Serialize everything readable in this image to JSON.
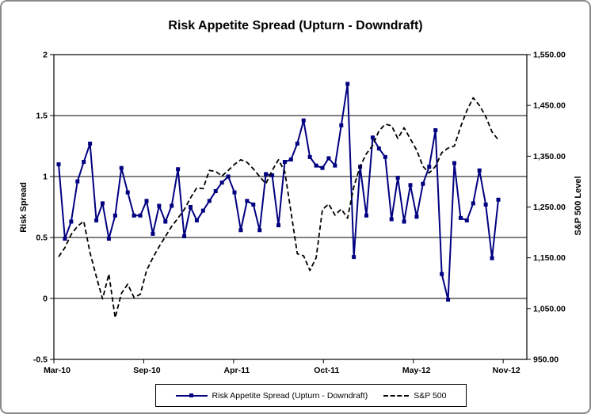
{
  "title": "Risk Appetite Spread (Upturn - Downdraft)",
  "legend": {
    "items": [
      {
        "label": "Risk Appetite Spread (Upturn - Downdraft)",
        "color": "#000080",
        "style": "solid-line-square-marker"
      },
      {
        "label": "S&P 500",
        "color": "#000000",
        "style": "dashed-line"
      }
    ]
  },
  "chart_data": {
    "type": "line",
    "title": "Risk Appetite Spread (Upturn - Downdraft)",
    "grid": "horizontal",
    "legend_position": "bottom",
    "left_axis": {
      "label": "Risk Spread",
      "min": -0.5,
      "max": 2,
      "tick_step": 0.5,
      "tick_labels": [
        "2",
        "1.5",
        "1",
        "0.5",
        "0",
        "-0.5"
      ],
      "tick_values": [
        2,
        1.5,
        1,
        0.5,
        0,
        -0.5
      ]
    },
    "right_axis": {
      "label": "S&P 500 Level",
      "min": 950,
      "max": 1550,
      "tick_step": 100,
      "tick_labels": [
        "1,550.00",
        "1,450.00",
        "1,350.00",
        "1,250.00",
        "1,150.00",
        "1,050.00",
        "950.00"
      ],
      "tick_values": [
        1550,
        1450,
        1350,
        1250,
        1150,
        1050,
        950
      ]
    },
    "x_axis": {
      "tick_labels": [
        "Mar-10",
        "Sep-10",
        "Apr-11",
        "Oct-11",
        "May-12",
        "Nov-12"
      ]
    },
    "series": [
      {
        "name": "Risk Appetite Spread (Upturn - Downdraft)",
        "axis": "left",
        "color": "#000080",
        "line": "solid",
        "marker": "square",
        "values": [
          1.1,
          0.49,
          0.63,
          0.96,
          1.12,
          1.27,
          0.64,
          0.78,
          0.49,
          0.68,
          1.07,
          0.87,
          0.68,
          0.68,
          0.8,
          0.53,
          0.76,
          0.63,
          0.76,
          1.06,
          0.51,
          0.75,
          0.64,
          0.72,
          0.8,
          0.88,
          0.95,
          1.0,
          0.87,
          0.56,
          0.8,
          0.77,
          0.56,
          1.02,
          1.01,
          0.6,
          1.12,
          1.14,
          1.27,
          1.46,
          1.16,
          1.09,
          1.07,
          1.15,
          1.09,
          1.42,
          1.76,
          0.34,
          1.08,
          0.68,
          1.32,
          1.23,
          1.16,
          0.65,
          0.99,
          0.63,
          0.93,
          0.67,
          0.94,
          1.08,
          1.38,
          0.2,
          -0.01,
          1.11,
          0.66,
          0.64,
          0.78,
          1.05,
          0.77,
          0.33,
          0.81
        ]
      },
      {
        "name": "S&P 500",
        "axis": "right",
        "color": "#000000",
        "line": "dashed",
        "marker": "none",
        "values": [
          1152,
          1170,
          1196,
          1212,
          1222,
          1160,
          1113,
          1069,
          1118,
          1032,
          1080,
          1098,
          1072,
          1078,
          1125,
          1150,
          1172,
          1192,
          1212,
          1228,
          1245,
          1268,
          1288,
          1286,
          1322,
          1320,
          1311,
          1322,
          1334,
          1343,
          1338,
          1325,
          1310,
          1296,
          1322,
          1343,
          1320,
          1240,
          1158,
          1154,
          1125,
          1150,
          1245,
          1256,
          1234,
          1246,
          1228,
          1290,
          1330,
          1355,
          1371,
          1400,
          1413,
          1410,
          1385,
          1406,
          1384,
          1362,
          1330,
          1317,
          1330,
          1357,
          1366,
          1370,
          1408,
          1440,
          1465,
          1450,
          1428,
          1398,
          1382
        ]
      }
    ]
  }
}
